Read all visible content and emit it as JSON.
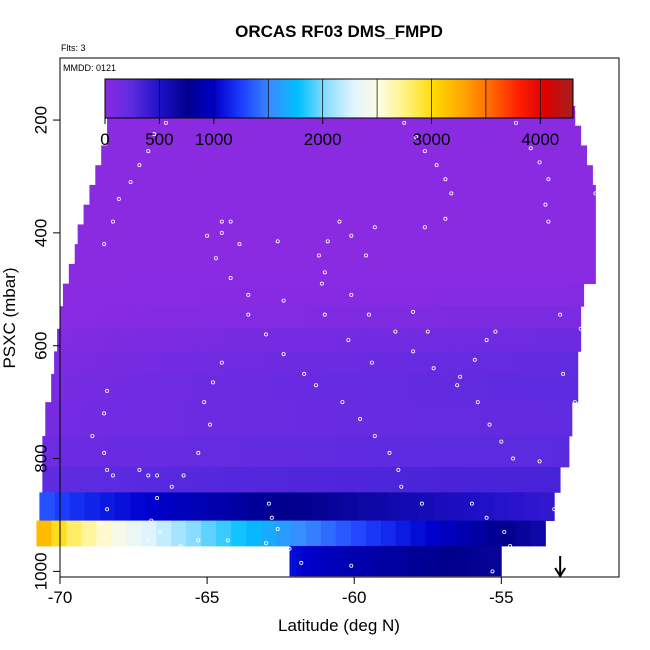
{
  "chart_data": {
    "type": "heatmap",
    "title": "ORCAS RF03 DMS_FMPD",
    "flights_note": "Flts: 3",
    "date_note": "MMDD: 0121",
    "xlabel": "Latitude (deg N)",
    "ylabel": "PSXC (mbar)",
    "xlim": [
      -70,
      -51
    ],
    "ylim": [
      1010,
      90
    ],
    "x_ticks": [
      -70,
      -65,
      -60,
      -55
    ],
    "x_tick_labels": [
      "-70",
      "-65",
      "-60",
      "-55"
    ],
    "y_ticks": [
      200,
      400,
      600,
      800,
      1000
    ],
    "y_tick_labels": [
      "200",
      "400",
      "600",
      "800",
      "1000"
    ],
    "colorbar": {
      "range": [
        0,
        4300
      ],
      "ticks": [
        0,
        500,
        1000,
        2000,
        3000,
        4000
      ],
      "tick_labels": [
        "0",
        "500",
        "1000",
        "2000",
        "3000",
        "4000"
      ],
      "divisions": [
        500,
        1000,
        1500,
        2000,
        2500,
        3000,
        3500,
        4000
      ],
      "colors": [
        "#8a2be2",
        "#5b2be0",
        "#1f10c8",
        "#00008b",
        "#0000cd",
        "#1e40ff",
        "#3a8cff",
        "#00bfff",
        "#87dcff",
        "#e0f4ff",
        "#fffbe0",
        "#fff176",
        "#ffd700",
        "#ffa500",
        "#ff6a00",
        "#ff2000",
        "#dd0000",
        "#a52020"
      ]
    },
    "grid": false,
    "marker_arrow_latitude": -53,
    "levels": [
      {
        "p0": 175,
        "p1": 210,
        "x0": -68.4,
        "x1": -52.5,
        "v0": 0,
        "v1": 0
      },
      {
        "p0": 210,
        "p1": 245,
        "x0": -68.4,
        "x1": -52.3,
        "v0": 0,
        "v1": 0
      },
      {
        "p0": 245,
        "p1": 280,
        "x0": -68.6,
        "x1": -52.1,
        "v0": 0,
        "v1": 0
      },
      {
        "p0": 280,
        "p1": 315,
        "x0": -68.8,
        "x1": -51.9,
        "v0": 0,
        "v1": 0
      },
      {
        "p0": 315,
        "p1": 350,
        "x0": -69.0,
        "x1": -51.8,
        "v0": 0,
        "v1": 0
      },
      {
        "p0": 350,
        "p1": 385,
        "x0": -69.2,
        "x1": -51.8,
        "v0": 0,
        "v1": 0
      },
      {
        "p0": 385,
        "p1": 420,
        "x0": -69.4,
        "x1": -51.8,
        "v0": 0,
        "v1": 0
      },
      {
        "p0": 420,
        "p1": 455,
        "x0": -69.5,
        "x1": -51.8,
        "v0": 0,
        "v1": 0
      },
      {
        "p0": 455,
        "p1": 490,
        "x0": -69.7,
        "x1": -51.8,
        "v0": 0,
        "v1": 10
      },
      {
        "p0": 490,
        "p1": 530,
        "x0": -69.9,
        "x1": -52.2,
        "v0": 0,
        "v1": 30
      },
      {
        "p0": 530,
        "p1": 570,
        "x0": -70.0,
        "x1": -52.3,
        "v0": 0,
        "v1": 80
      },
      {
        "p0": 570,
        "p1": 610,
        "x0": -70.1,
        "x1": -52.3,
        "v0": 40,
        "v1": 160
      },
      {
        "p0": 610,
        "p1": 650,
        "x0": -70.2,
        "x1": -52.4,
        "v0": 60,
        "v1": 220
      },
      {
        "p0": 650,
        "p1": 700,
        "x0": -70.3,
        "x1": -52.4,
        "v0": 80,
        "v1": 240
      },
      {
        "p0": 700,
        "p1": 760,
        "x0": -70.5,
        "x1": -52.6,
        "v0": 100,
        "v1": 220
      },
      {
        "p0": 760,
        "p1": 815,
        "x0": -70.6,
        "x1": -52.7,
        "v0": 140,
        "v1": 260
      },
      {
        "p0": 815,
        "p1": 860,
        "x0": -70.6,
        "x1": -53.0,
        "v0": 220,
        "v1": 340
      },
      {
        "p0": 860,
        "p1": 910,
        "x0": -70.7,
        "x1": -53.2,
        "v0": 1400,
        "v1": 420
      },
      {
        "p0": 910,
        "p1": 955,
        "x0": -70.8,
        "x1": -53.5,
        "v0": 3400,
        "v1": 620
      }
    ],
    "bottom_band": {
      "p0": 955,
      "p1": 1008,
      "x0": -62.2,
      "x1": -55.0,
      "v0": 1100,
      "v1": 700
    },
    "point_rows": [
      {
        "p": 180,
        "x0": -64.6,
        "x1": -58.3,
        "n": 40
      },
      {
        "p": 180,
        "x0": -57.5,
        "x1": -51.8,
        "n": 28
      }
    ],
    "points": [
      [
        -58.3,
        205
      ],
      [
        -57.9,
        230
      ],
      [
        -57.6,
        255
      ],
      [
        -57.2,
        280
      ],
      [
        -56.9,
        305
      ],
      [
        -56.7,
        330
      ],
      [
        -56.9,
        375
      ],
      [
        -57.6,
        390
      ],
      [
        -59.3,
        390
      ],
      [
        -60.5,
        380
      ],
      [
        -60.1,
        405
      ],
      [
        -54.5,
        205
      ],
      [
        -54.0,
        250
      ],
      [
        -53.7,
        275
      ],
      [
        -53.4,
        305
      ],
      [
        -53.5,
        350
      ],
      [
        -53.4,
        380
      ],
      [
        -52.2,
        225
      ],
      [
        -52.0,
        265
      ],
      [
        -51.8,
        285
      ],
      [
        -51.8,
        330
      ],
      [
        -66.4,
        205
      ],
      [
        -66.8,
        225
      ],
      [
        -67.0,
        255
      ],
      [
        -67.3,
        280
      ],
      [
        -67.6,
        310
      ],
      [
        -68.0,
        340
      ],
      [
        -68.2,
        380
      ],
      [
        -68.5,
        420
      ],
      [
        -64.2,
        380
      ],
      [
        -64.5,
        400
      ],
      [
        -63.9,
        420
      ],
      [
        -62.6,
        415
      ],
      [
        -60.9,
        415
      ],
      [
        -59.6,
        440
      ],
      [
        -61.2,
        440
      ],
      [
        -61.0,
        470
      ],
      [
        -61.1,
        490
      ],
      [
        -60.1,
        510
      ],
      [
        -59.5,
        545
      ],
      [
        -58.6,
        575
      ],
      [
        -58.0,
        610
      ],
      [
        -57.3,
        640
      ],
      [
        -56.5,
        670
      ],
      [
        -55.8,
        700
      ],
      [
        -55.4,
        740
      ],
      [
        -55.0,
        770
      ],
      [
        -54.6,
        800
      ],
      [
        -55.2,
        575
      ],
      [
        -55.5,
        590
      ],
      [
        -55.9,
        625
      ],
      [
        -56.4,
        655
      ],
      [
        -58.0,
        540
      ],
      [
        -57.5,
        575
      ],
      [
        -64.5,
        380
      ],
      [
        -65.0,
        405
      ],
      [
        -64.7,
        445
      ],
      [
        -64.2,
        480
      ],
      [
        -63.6,
        510
      ],
      [
        -63.6,
        545
      ],
      [
        -63.0,
        580
      ],
      [
        -62.4,
        615
      ],
      [
        -61.7,
        650
      ],
      [
        -61.3,
        670
      ],
      [
        -60.4,
        700
      ],
      [
        -59.8,
        730
      ],
      [
        -59.3,
        760
      ],
      [
        -58.8,
        790
      ],
      [
        -58.5,
        820
      ],
      [
        -58.4,
        850
      ],
      [
        -57.7,
        880
      ],
      [
        -62.4,
        520
      ],
      [
        -61.0,
        545
      ],
      [
        -60.2,
        590
      ],
      [
        -59.4,
        630
      ],
      [
        -64.5,
        630
      ],
      [
        -64.8,
        665
      ],
      [
        -65.1,
        700
      ],
      [
        -64.9,
        740
      ],
      [
        -68.4,
        680
      ],
      [
        -68.5,
        720
      ],
      [
        -68.9,
        760
      ],
      [
        -68.5,
        790
      ],
      [
        -68.4,
        820
      ],
      [
        -68.2,
        830
      ],
      [
        -67.3,
        820
      ],
      [
        -67.0,
        830
      ],
      [
        -66.7,
        830
      ],
      [
        -66.2,
        850
      ],
      [
        -65.3,
        790
      ],
      [
        -65.8,
        830
      ],
      [
        -66.7,
        870
      ],
      [
        -66.9,
        910
      ],
      [
        -66.6,
        930
      ],
      [
        -62.9,
        880
      ],
      [
        -62.8,
        905
      ],
      [
        -62.6,
        925
      ],
      [
        -63.0,
        950
      ],
      [
        -63.3,
        960
      ],
      [
        -62.2,
        960
      ],
      [
        -61.8,
        985
      ],
      [
        -60.1,
        990
      ],
      [
        -56.0,
        880
      ],
      [
        -55.5,
        905
      ],
      [
        -54.9,
        930
      ],
      [
        -54.7,
        955
      ],
      [
        -54.8,
        985
      ],
      [
        -55.3,
        1000
      ],
      [
        -53.7,
        805
      ],
      [
        -53.2,
        890
      ],
      [
        -53.2,
        925
      ],
      [
        -52.9,
        650
      ],
      [
        -52.5,
        700
      ],
      [
        -52.2,
        760
      ],
      [
        -52.1,
        800
      ],
      [
        -52.3,
        625
      ],
      [
        -52.3,
        570
      ],
      [
        -53.0,
        545
      ],
      [
        -68.4,
        890
      ],
      [
        -68.6,
        915
      ],
      [
        -68.5,
        940
      ],
      [
        -68.7,
        960
      ],
      [
        -68.3,
        975
      ],
      [
        -67.0,
        945
      ],
      [
        -66.4,
        960
      ],
      [
        -66.9,
        990
      ],
      [
        -65.9,
        955
      ],
      [
        -65.3,
        945
      ],
      [
        -64.7,
        960
      ],
      [
        -64.3,
        945
      ],
      [
        -63.8,
        960
      ]
    ]
  }
}
